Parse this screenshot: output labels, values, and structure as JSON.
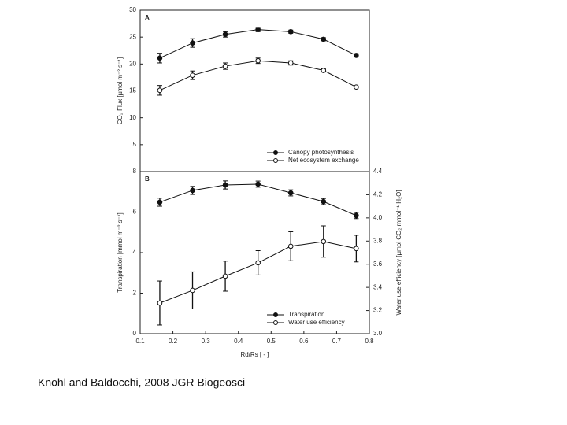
{
  "chart_data": [
    {
      "type": "line",
      "panel_label": "A",
      "ylabel": "CO₂ Flux [µmol m⁻² s⁻¹]",
      "xlim": [
        0.1,
        0.8
      ],
      "x": [
        0.16,
        0.26,
        0.36,
        0.46,
        0.56,
        0.66,
        0.76
      ],
      "ylim": [
        0,
        30
      ],
      "yticks": [
        5,
        10,
        15,
        20,
        25,
        30
      ],
      "legend": "lower right",
      "series": [
        {
          "name": "Canopy photosynthesis",
          "color": "#111111",
          "marker": "filled",
          "values": [
            21.1,
            23.9,
            25.5,
            26.4,
            26.0,
            24.6,
            21.6
          ],
          "errors": [
            0.9,
            0.8,
            0.5,
            0.4,
            0.3,
            0.3,
            0.3
          ]
        },
        {
          "name": "Net ecosystem exchange",
          "color": "#111111",
          "marker": "open",
          "values": [
            15.1,
            17.9,
            19.6,
            20.6,
            20.2,
            18.8,
            15.7
          ],
          "errors": [
            0.9,
            0.8,
            0.6,
            0.5,
            0.4,
            0.3,
            0.2
          ]
        }
      ]
    },
    {
      "type": "line",
      "panel_label": "B",
      "ylabel": "Transpiration [mmol m⁻² s⁻¹]",
      "y2label": "Water use efficiency [µmol CO₂ mmol⁻¹ H₂O]",
      "xlabel": "Rd/Rs [ - ]",
      "xlim": [
        0.1,
        0.8
      ],
      "xticks": [
        0.1,
        0.2,
        0.3,
        0.4,
        0.5,
        0.6,
        0.7,
        0.8
      ],
      "x": [
        0.16,
        0.26,
        0.36,
        0.46,
        0.56,
        0.66,
        0.76
      ],
      "ylim": [
        0,
        8
      ],
      "yticks": [
        0,
        2,
        4,
        6,
        8
      ],
      "y2lim": [
        3.0,
        4.4
      ],
      "y2ticks": [
        {
          "value": 3,
          "label": "3.0"
        },
        3.2,
        3.4,
        3.6,
        3.8,
        {
          "value": 4,
          "label": "4.0"
        },
        4.2,
        4.4
      ],
      "legend": "lower right",
      "series": [
        {
          "name": "Transpiration",
          "color": "#111111",
          "marker": "filled",
          "values": [
            6.49,
            7.07,
            7.34,
            7.38,
            6.95,
            6.52,
            5.83
          ],
          "errors": [
            0.2,
            0.2,
            0.2,
            0.15,
            0.15,
            0.15,
            0.15
          ]
        },
        {
          "name": "Water use efficiency",
          "color": "#111111",
          "marker": "open",
          "axis": "y2",
          "values": [
            3.265,
            3.374,
            3.497,
            3.612,
            3.755,
            3.796,
            3.735
          ],
          "errors": [
            0.19,
            0.16,
            0.13,
            0.105,
            0.125,
            0.135,
            0.115
          ]
        }
      ]
    }
  ],
  "caption": "Knohl and Baldocchi, 2008 JGR Biogeosci"
}
